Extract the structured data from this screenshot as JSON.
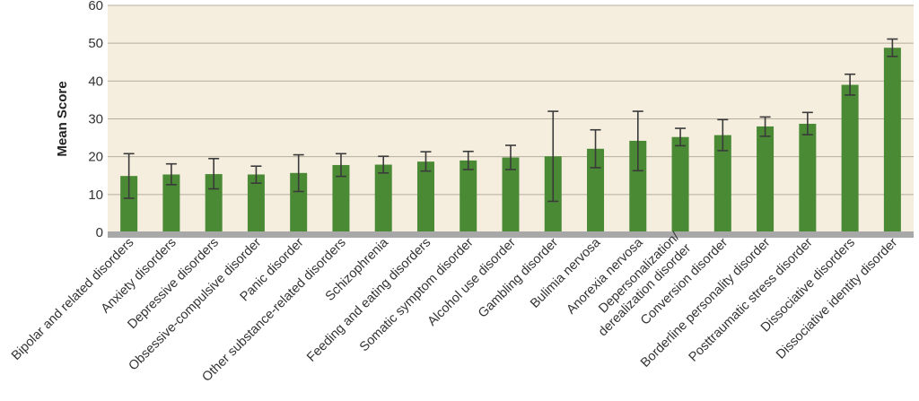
{
  "chart_data": {
    "type": "bar",
    "title": "",
    "xlabel": "",
    "ylabel": "Mean Score",
    "ylim": [
      0,
      60
    ],
    "yticks": [
      0,
      10,
      20,
      30,
      40,
      50,
      60
    ],
    "grid": true,
    "legend": "none",
    "colors": {
      "bar": "#4a8a35",
      "plot_background": "#f5eedf",
      "gridline": "#b5ad9e",
      "baseline": "#a8a8a8",
      "error_bar": "#3a3a3a"
    },
    "categories": [
      "Bipolar and related disorders",
      "Anxiety disorders",
      "Depressive disorders",
      "Obsessive-compulsive disorder",
      "Panic disorder",
      "Other substance-related disorders",
      "Schizophrenia",
      "Feeding and eating disorders",
      "Somatic symptom disorder",
      "Alcohol use disorder",
      "Gambling disorder",
      "Bulimia nervosa",
      "Anorexia nervosa",
      "Depersonalization/\nderealization disorder",
      "Conversion disorder",
      "Borderline personality disorder",
      "Posttraumatic stress disorder",
      "Dissociative disorders",
      "Dissociative identity disorder"
    ],
    "values": [
      14.9,
      15.3,
      15.4,
      15.3,
      15.7,
      17.8,
      17.9,
      18.7,
      19.0,
      19.8,
      20.1,
      22.1,
      24.2,
      25.2,
      25.7,
      28.0,
      28.7,
      39.0,
      48.8
    ],
    "error_low": [
      9.0,
      12.6,
      11.5,
      13.0,
      10.8,
      14.8,
      15.7,
      16.2,
      16.6,
      16.6,
      8.2,
      17.1,
      16.3,
      22.9,
      21.6,
      25.4,
      25.8,
      36.3,
      46.5
    ],
    "error_high": [
      20.8,
      18.1,
      19.5,
      17.5,
      20.5,
      20.8,
      20.1,
      21.3,
      21.4,
      23.0,
      32.0,
      27.1,
      32.0,
      27.5,
      29.8,
      30.5,
      31.7,
      41.8,
      51.1
    ]
  }
}
